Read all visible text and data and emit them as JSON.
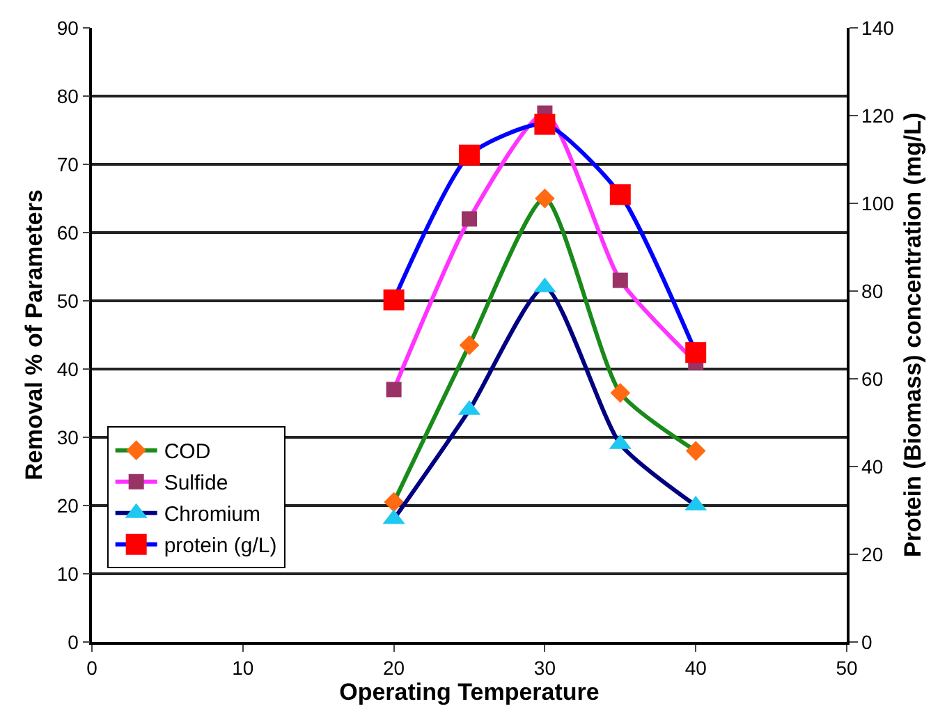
{
  "chart_data": {
    "type": "line",
    "xlabel": "Operating Temperature",
    "ylabel": "Removal % of Parameters",
    "y2label": "Protein (Biomass) concentration (mg/L)",
    "x": [
      20,
      25,
      30,
      35,
      40
    ],
    "series": [
      {
        "name": "COD",
        "color": "#1a8a1a",
        "colors": [
          "#ff6a13",
          "#ff6a13",
          "#ff6a13",
          "#ff6a13",
          "#ff6a13"
        ],
        "marker": "diamond",
        "values": [
          20.5,
          43.5,
          65,
          36.5,
          28
        ]
      },
      {
        "name": "Sulfide",
        "color": "#ff33ff",
        "colors": [
          "#993366",
          "#993366",
          "#993366",
          "#993366",
          "#993366"
        ],
        "marker": "square",
        "values": [
          37,
          62,
          77.5,
          53,
          41
        ]
      },
      {
        "name": "Chromium",
        "color": "#000080",
        "colors": [
          "#1ec8f0",
          "#1ec8f0",
          "#1ec8f0",
          "#1ec8f0",
          "#1ec8f0"
        ],
        "marker": "triangle",
        "values": [
          18,
          34,
          52,
          29,
          20
        ]
      },
      {
        "name": "protein (g/L)",
        "color": "#0000ff",
        "colors": [
          "#ff0000",
          "#ff0000",
          "#ff0000",
          "#ff0000",
          "#ff0000"
        ],
        "marker": "square",
        "axis": "y2",
        "values": [
          78,
          111,
          118,
          102,
          66
        ]
      }
    ],
    "xlim": [
      0,
      50
    ],
    "xticks": [
      0,
      10,
      20,
      30,
      40,
      50
    ],
    "ylim": [
      0,
      90
    ],
    "yticks": [
      0,
      10,
      20,
      30,
      40,
      50,
      60,
      70,
      80,
      90
    ],
    "y2lim": [
      0,
      140
    ],
    "y2ticks": [
      0,
      20,
      40,
      60,
      80,
      100,
      120,
      140
    ],
    "grid": "y",
    "legend": "bottom left"
  }
}
